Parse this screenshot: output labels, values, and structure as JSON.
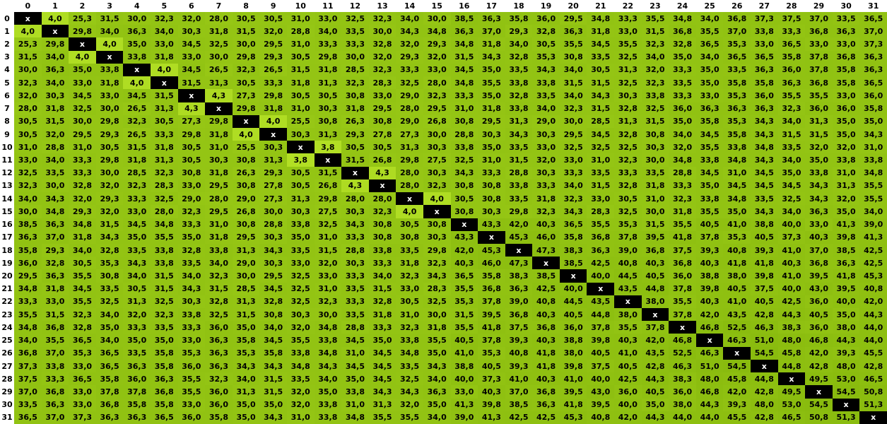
{
  "colors": {
    "page_bg": "#ffffff",
    "header_bg": "#ffffff",
    "header_text": "#000000",
    "cell_text": "#000000",
    "diagonal_bg": "#000000",
    "diagonal_text": "#ffffff",
    "scale_low": "#b2df24",
    "scale_high": "#89bb0e"
  },
  "chart_data": {
    "type": "heatmap",
    "diagonal_marker": "x",
    "decimal_separator": ",",
    "value_min": 3.8,
    "value_max": 54.5,
    "x_labels": [
      "0",
      "1",
      "2",
      "3",
      "4",
      "5",
      "6",
      "7",
      "8",
      "9",
      "10",
      "11",
      "12",
      "13",
      "14",
      "15",
      "16",
      "17",
      "18",
      "19",
      "20",
      "21",
      "22",
      "23",
      "24",
      "25",
      "26",
      "27",
      "28",
      "29",
      "30",
      "31"
    ],
    "y_labels": [
      "0",
      "1",
      "2",
      "3",
      "4",
      "5",
      "6",
      "7",
      "8",
      "9",
      "10",
      "11",
      "12",
      "13",
      "14",
      "15",
      "16",
      "17",
      "18",
      "19",
      "20",
      "21",
      "22",
      "23",
      "24",
      "25",
      "26",
      "27",
      "28",
      "29",
      "30",
      "31"
    ],
    "rows": [
      [
        "x",
        "4,0",
        "25,3",
        "31,5",
        "30,0",
        "32,3",
        "32,0",
        "28,0",
        "30,5",
        "30,5",
        "31,0",
        "33,0",
        "32,5",
        "32,3",
        "34,0",
        "30,0",
        "38,5",
        "36,3",
        "35,8",
        "36,0",
        "29,5",
        "34,8",
        "33,3",
        "35,5",
        "34,8",
        "34,0",
        "36,8",
        "37,3",
        "37,5",
        "37,0",
        "33,5",
        "36,5"
      ],
      [
        "4,0",
        "x",
        "29,8",
        "34,0",
        "36,3",
        "34,0",
        "30,3",
        "31,8",
        "31,5",
        "32,0",
        "28,8",
        "34,0",
        "33,5",
        "30,0",
        "34,3",
        "34,8",
        "36,3",
        "37,0",
        "29,3",
        "32,8",
        "36,3",
        "31,8",
        "33,0",
        "31,5",
        "36,8",
        "35,5",
        "37,0",
        "33,8",
        "33,3",
        "36,8",
        "36,3",
        "37,0"
      ],
      [
        "25,3",
        "29,8",
        "x",
        "4,0",
        "35,0",
        "33,0",
        "34,5",
        "32,5",
        "30,0",
        "29,5",
        "31,0",
        "33,3",
        "33,3",
        "32,8",
        "32,0",
        "29,3",
        "34,8",
        "31,8",
        "34,0",
        "30,5",
        "35,5",
        "34,5",
        "35,5",
        "32,3",
        "32,8",
        "36,5",
        "35,3",
        "33,0",
        "36,5",
        "33,0",
        "33,0",
        "37,3"
      ],
      [
        "31,5",
        "34,0",
        "4,0",
        "x",
        "33,8",
        "31,8",
        "33,0",
        "30,0",
        "29,8",
        "29,3",
        "30,5",
        "29,8",
        "30,0",
        "32,0",
        "29,3",
        "32,0",
        "31,5",
        "34,3",
        "32,8",
        "35,3",
        "30,8",
        "33,5",
        "32,5",
        "34,0",
        "35,0",
        "34,0",
        "36,5",
        "36,5",
        "35,8",
        "37,8",
        "36,8",
        "36,3"
      ],
      [
        "30,0",
        "36,3",
        "35,0",
        "33,8",
        "x",
        "4,0",
        "34,5",
        "26,5",
        "32,3",
        "26,5",
        "31,5",
        "31,8",
        "28,5",
        "32,3",
        "33,3",
        "33,0",
        "34,5",
        "35,0",
        "33,5",
        "34,3",
        "34,0",
        "30,5",
        "31,3",
        "32,0",
        "33,3",
        "35,0",
        "33,5",
        "36,3",
        "36,0",
        "37,8",
        "35,8",
        "36,3"
      ],
      [
        "32,3",
        "34,0",
        "33,0",
        "31,8",
        "4,0",
        "x",
        "31,5",
        "31,3",
        "30,5",
        "33,3",
        "31,8",
        "31,3",
        "32,3",
        "28,3",
        "32,5",
        "28,0",
        "34,8",
        "35,5",
        "33,8",
        "33,8",
        "31,5",
        "31,5",
        "32,5",
        "32,3",
        "33,5",
        "35,0",
        "35,8",
        "35,8",
        "36,3",
        "36,8",
        "35,8",
        "36,5"
      ],
      [
        "32,0",
        "30,3",
        "34,5",
        "33,0",
        "34,5",
        "31,5",
        "x",
        "4,3",
        "27,3",
        "29,8",
        "30,5",
        "30,5",
        "30,8",
        "33,0",
        "29,0",
        "32,3",
        "33,3",
        "35,0",
        "32,8",
        "33,5",
        "34,0",
        "34,3",
        "30,3",
        "33,8",
        "33,3",
        "33,0",
        "35,3",
        "36,0",
        "35,5",
        "35,5",
        "33,0",
        "36,0"
      ],
      [
        "28,0",
        "31,8",
        "32,5",
        "30,0",
        "26,5",
        "31,3",
        "4,3",
        "x",
        "29,8",
        "31,8",
        "31,0",
        "30,3",
        "31,8",
        "29,5",
        "28,0",
        "29,5",
        "31,0",
        "31,8",
        "33,8",
        "34,0",
        "32,3",
        "31,5",
        "32,8",
        "32,5",
        "36,0",
        "36,3",
        "36,3",
        "36,3",
        "32,3",
        "36,0",
        "36,0",
        "35,8"
      ],
      [
        "30,5",
        "31,5",
        "30,0",
        "29,8",
        "32,3",
        "30,5",
        "27,3",
        "29,8",
        "x",
        "4,0",
        "25,5",
        "30,8",
        "26,3",
        "30,8",
        "29,0",
        "26,8",
        "30,8",
        "29,5",
        "31,3",
        "29,0",
        "30,0",
        "28,5",
        "31,3",
        "31,5",
        "35,0",
        "35,8",
        "35,3",
        "34,3",
        "34,0",
        "31,3",
        "35,0",
        "35,0"
      ],
      [
        "30,5",
        "32,0",
        "29,5",
        "29,3",
        "26,5",
        "33,3",
        "29,8",
        "31,8",
        "4,0",
        "x",
        "30,3",
        "31,3",
        "29,3",
        "27,8",
        "27,3",
        "30,0",
        "28,8",
        "30,3",
        "34,3",
        "30,3",
        "29,5",
        "34,5",
        "32,8",
        "30,8",
        "34,0",
        "34,5",
        "35,8",
        "34,3",
        "31,5",
        "31,5",
        "35,0",
        "34,3"
      ],
      [
        "31,0",
        "28,8",
        "31,0",
        "30,5",
        "31,5",
        "31,8",
        "30,5",
        "31,0",
        "25,5",
        "30,3",
        "x",
        "3,8",
        "30,5",
        "30,5",
        "31,3",
        "30,3",
        "33,8",
        "35,0",
        "33,5",
        "33,0",
        "32,5",
        "32,5",
        "32,5",
        "30,3",
        "32,0",
        "35,5",
        "33,8",
        "34,8",
        "33,5",
        "32,0",
        "32,0",
        "31,0"
      ],
      [
        "33,0",
        "34,0",
        "33,3",
        "29,8",
        "31,8",
        "31,3",
        "30,5",
        "30,3",
        "30,8",
        "31,3",
        "3,8",
        "x",
        "31,5",
        "26,8",
        "29,8",
        "27,5",
        "32,5",
        "31,0",
        "31,5",
        "32,0",
        "33,0",
        "31,0",
        "32,3",
        "30,0",
        "34,8",
        "33,8",
        "34,8",
        "34,3",
        "34,0",
        "35,0",
        "33,8",
        "33,8"
      ],
      [
        "32,5",
        "33,5",
        "33,3",
        "30,0",
        "28,5",
        "32,3",
        "30,8",
        "31,8",
        "26,3",
        "29,3",
        "30,5",
        "31,5",
        "x",
        "4,3",
        "28,0",
        "30,3",
        "34,3",
        "33,3",
        "28,8",
        "30,3",
        "33,3",
        "33,5",
        "33,3",
        "33,5",
        "28,8",
        "34,5",
        "31,0",
        "34,5",
        "35,0",
        "33,8",
        "31,0",
        "34,8"
      ],
      [
        "32,3",
        "30,0",
        "32,8",
        "32,0",
        "32,3",
        "28,3",
        "33,0",
        "29,5",
        "30,8",
        "27,8",
        "30,5",
        "26,8",
        "4,3",
        "x",
        "28,0",
        "32,3",
        "30,8",
        "30,8",
        "33,8",
        "33,3",
        "34,0",
        "31,5",
        "32,8",
        "31,8",
        "33,3",
        "35,0",
        "34,5",
        "34,5",
        "34,5",
        "34,3",
        "31,3",
        "35,5"
      ],
      [
        "34,0",
        "34,3",
        "32,0",
        "29,3",
        "33,3",
        "32,5",
        "29,0",
        "28,0",
        "29,0",
        "27,3",
        "31,3",
        "29,8",
        "28,0",
        "28,0",
        "x",
        "4,0",
        "30,5",
        "30,8",
        "33,5",
        "31,8",
        "32,3",
        "33,0",
        "30,5",
        "31,0",
        "32,3",
        "33,8",
        "34,8",
        "33,5",
        "32,5",
        "34,3",
        "32,0",
        "35,5"
      ],
      [
        "30,0",
        "34,8",
        "29,3",
        "32,0",
        "33,0",
        "28,0",
        "32,3",
        "29,5",
        "26,8",
        "30,0",
        "30,3",
        "27,5",
        "30,3",
        "32,3",
        "4,0",
        "x",
        "30,8",
        "30,3",
        "29,8",
        "32,3",
        "34,3",
        "28,3",
        "32,5",
        "30,0",
        "31,8",
        "35,5",
        "35,0",
        "34,3",
        "34,0",
        "36,3",
        "35,0",
        "34,0"
      ],
      [
        "38,5",
        "36,3",
        "34,8",
        "31,5",
        "34,5",
        "34,8",
        "33,3",
        "31,0",
        "30,8",
        "28,8",
        "33,8",
        "32,5",
        "34,3",
        "30,8",
        "30,5",
        "30,8",
        "x",
        "43,3",
        "42,0",
        "40,3",
        "36,5",
        "35,5",
        "35,3",
        "31,5",
        "35,5",
        "40,5",
        "41,0",
        "38,8",
        "40,0",
        "33,0",
        "41,3",
        "39,0"
      ],
      [
        "36,3",
        "37,0",
        "31,8",
        "34,3",
        "35,0",
        "35,5",
        "35,0",
        "31,8",
        "29,5",
        "30,3",
        "35,0",
        "31,0",
        "33,3",
        "30,8",
        "30,8",
        "30,3",
        "43,3",
        "x",
        "45,3",
        "46,0",
        "35,8",
        "36,8",
        "37,8",
        "39,5",
        "41,8",
        "37,8",
        "35,3",
        "40,5",
        "37,3",
        "40,3",
        "39,8",
        "41,3"
      ],
      [
        "35,8",
        "29,3",
        "34,0",
        "32,8",
        "33,5",
        "33,8",
        "32,8",
        "33,8",
        "31,3",
        "34,3",
        "33,5",
        "31,5",
        "28,8",
        "33,8",
        "33,5",
        "29,8",
        "42,0",
        "45,3",
        "x",
        "47,3",
        "38,3",
        "36,3",
        "39,0",
        "36,8",
        "37,5",
        "39,3",
        "40,8",
        "39,3",
        "41,0",
        "37,0",
        "38,5",
        "42,5"
      ],
      [
        "36,0",
        "32,8",
        "30,5",
        "35,3",
        "34,3",
        "33,8",
        "33,5",
        "34,0",
        "29,0",
        "30,3",
        "33,0",
        "32,0",
        "30,3",
        "33,3",
        "31,8",
        "32,3",
        "40,3",
        "46,0",
        "47,3",
        "x",
        "38,5",
        "42,5",
        "40,8",
        "40,3",
        "36,8",
        "40,3",
        "41,8",
        "41,8",
        "40,3",
        "36,8",
        "36,3",
        "42,5"
      ],
      [
        "29,5",
        "36,3",
        "35,5",
        "30,8",
        "34,0",
        "31,5",
        "34,0",
        "32,3",
        "30,0",
        "29,5",
        "32,5",
        "33,0",
        "33,3",
        "34,0",
        "32,3",
        "34,3",
        "36,5",
        "35,8",
        "38,3",
        "38,5",
        "x",
        "40,0",
        "44,5",
        "40,5",
        "36,0",
        "38,8",
        "38,0",
        "39,8",
        "41,0",
        "39,5",
        "41,8",
        "45,3"
      ],
      [
        "34,8",
        "31,8",
        "34,5",
        "33,5",
        "30,5",
        "31,5",
        "34,3",
        "31,5",
        "28,5",
        "34,5",
        "32,5",
        "31,0",
        "33,5",
        "31,5",
        "33,0",
        "28,3",
        "35,5",
        "36,8",
        "36,3",
        "42,5",
        "40,0",
        "x",
        "43,5",
        "44,8",
        "37,8",
        "39,8",
        "40,5",
        "37,5",
        "40,0",
        "43,0",
        "39,5",
        "40,8"
      ],
      [
        "33,3",
        "33,0",
        "35,5",
        "32,5",
        "31,3",
        "32,5",
        "30,3",
        "32,8",
        "31,3",
        "32,8",
        "32,5",
        "32,3",
        "33,3",
        "32,8",
        "30,5",
        "32,5",
        "35,3",
        "37,8",
        "39,0",
        "40,8",
        "44,5",
        "43,5",
        "x",
        "38,0",
        "35,5",
        "40,3",
        "41,0",
        "40,5",
        "42,5",
        "36,0",
        "40,0",
        "42,0"
      ],
      [
        "35,5",
        "31,5",
        "32,3",
        "34,0",
        "32,0",
        "32,3",
        "33,8",
        "32,5",
        "31,5",
        "30,8",
        "30,3",
        "30,0",
        "33,5",
        "31,8",
        "31,0",
        "30,0",
        "31,5",
        "39,5",
        "36,8",
        "40,3",
        "40,5",
        "44,8",
        "38,0",
        "x",
        "37,8",
        "42,0",
        "43,5",
        "42,8",
        "44,3",
        "40,5",
        "35,0",
        "44,3"
      ],
      [
        "34,8",
        "36,8",
        "32,8",
        "35,0",
        "33,3",
        "33,5",
        "33,3",
        "36,0",
        "35,0",
        "34,0",
        "32,0",
        "34,8",
        "28,8",
        "33,3",
        "32,3",
        "31,8",
        "35,5",
        "41,8",
        "37,5",
        "36,8",
        "36,0",
        "37,8",
        "35,5",
        "37,8",
        "x",
        "46,8",
        "52,5",
        "46,3",
        "38,3",
        "36,0",
        "38,0",
        "44,0"
      ],
      [
        "34,0",
        "35,5",
        "36,5",
        "34,0",
        "35,0",
        "35,0",
        "33,0",
        "36,3",
        "35,8",
        "34,5",
        "35,5",
        "33,8",
        "34,5",
        "35,0",
        "33,8",
        "35,5",
        "40,5",
        "37,8",
        "39,3",
        "40,3",
        "38,8",
        "39,8",
        "40,3",
        "42,0",
        "46,8",
        "x",
        "46,3",
        "51,0",
        "48,0",
        "46,8",
        "44,3",
        "44,0"
      ],
      [
        "36,8",
        "37,0",
        "35,3",
        "36,5",
        "33,5",
        "35,8",
        "35,3",
        "36,3",
        "35,3",
        "35,8",
        "33,8",
        "34,8",
        "31,0",
        "34,5",
        "34,8",
        "35,0",
        "41,0",
        "35,3",
        "40,8",
        "41,8",
        "38,0",
        "40,5",
        "41,0",
        "43,5",
        "52,5",
        "46,3",
        "x",
        "54,5",
        "45,8",
        "42,0",
        "39,3",
        "45,5"
      ],
      [
        "37,3",
        "33,8",
        "33,0",
        "36,5",
        "36,3",
        "35,8",
        "36,0",
        "36,3",
        "34,3",
        "34,3",
        "34,8",
        "34,3",
        "34,5",
        "34,5",
        "33,5",
        "34,3",
        "38,8",
        "40,5",
        "39,3",
        "41,8",
        "39,8",
        "37,5",
        "40,5",
        "42,8",
        "46,3",
        "51,0",
        "54,5",
        "x",
        "44,8",
        "42,8",
        "48,0",
        "42,8"
      ],
      [
        "37,5",
        "33,3",
        "36,5",
        "35,8",
        "36,0",
        "36,3",
        "35,5",
        "32,3",
        "34,0",
        "31,5",
        "33,5",
        "34,0",
        "35,0",
        "34,5",
        "32,5",
        "34,0",
        "40,0",
        "37,3",
        "41,0",
        "40,3",
        "41,0",
        "40,0",
        "42,5",
        "44,3",
        "38,3",
        "48,0",
        "45,8",
        "44,8",
        "x",
        "49,5",
        "53,0",
        "46,5"
      ],
      [
        "37,0",
        "36,8",
        "33,0",
        "37,8",
        "37,8",
        "36,8",
        "35,5",
        "36,0",
        "31,3",
        "31,5",
        "32,0",
        "35,0",
        "33,8",
        "34,3",
        "34,3",
        "36,3",
        "33,0",
        "40,3",
        "37,0",
        "36,8",
        "39,5",
        "43,0",
        "36,0",
        "40,5",
        "36,0",
        "46,8",
        "42,0",
        "42,8",
        "49,5",
        "x",
        "54,5",
        "50,8"
      ],
      [
        "33,5",
        "36,3",
        "33,0",
        "36,8",
        "35,8",
        "35,8",
        "33,0",
        "36,0",
        "35,0",
        "35,0",
        "32,0",
        "33,8",
        "31,0",
        "31,3",
        "32,0",
        "35,0",
        "41,3",
        "39,8",
        "38,5",
        "36,3",
        "41,8",
        "39,5",
        "40,0",
        "35,0",
        "38,0",
        "44,3",
        "39,3",
        "48,0",
        "53,0",
        "54,5",
        "x",
        "51,3"
      ],
      [
        "36,5",
        "37,0",
        "37,3",
        "36,3",
        "36,3",
        "36,5",
        "36,0",
        "35,8",
        "35,0",
        "34,3",
        "31,0",
        "33,8",
        "34,8",
        "35,5",
        "35,5",
        "34,0",
        "39,0",
        "41,3",
        "42,5",
        "42,5",
        "45,3",
        "40,8",
        "42,0",
        "44,3",
        "44,0",
        "44,0",
        "45,5",
        "42,8",
        "46,5",
        "50,8",
        "51,3",
        "x"
      ]
    ]
  }
}
